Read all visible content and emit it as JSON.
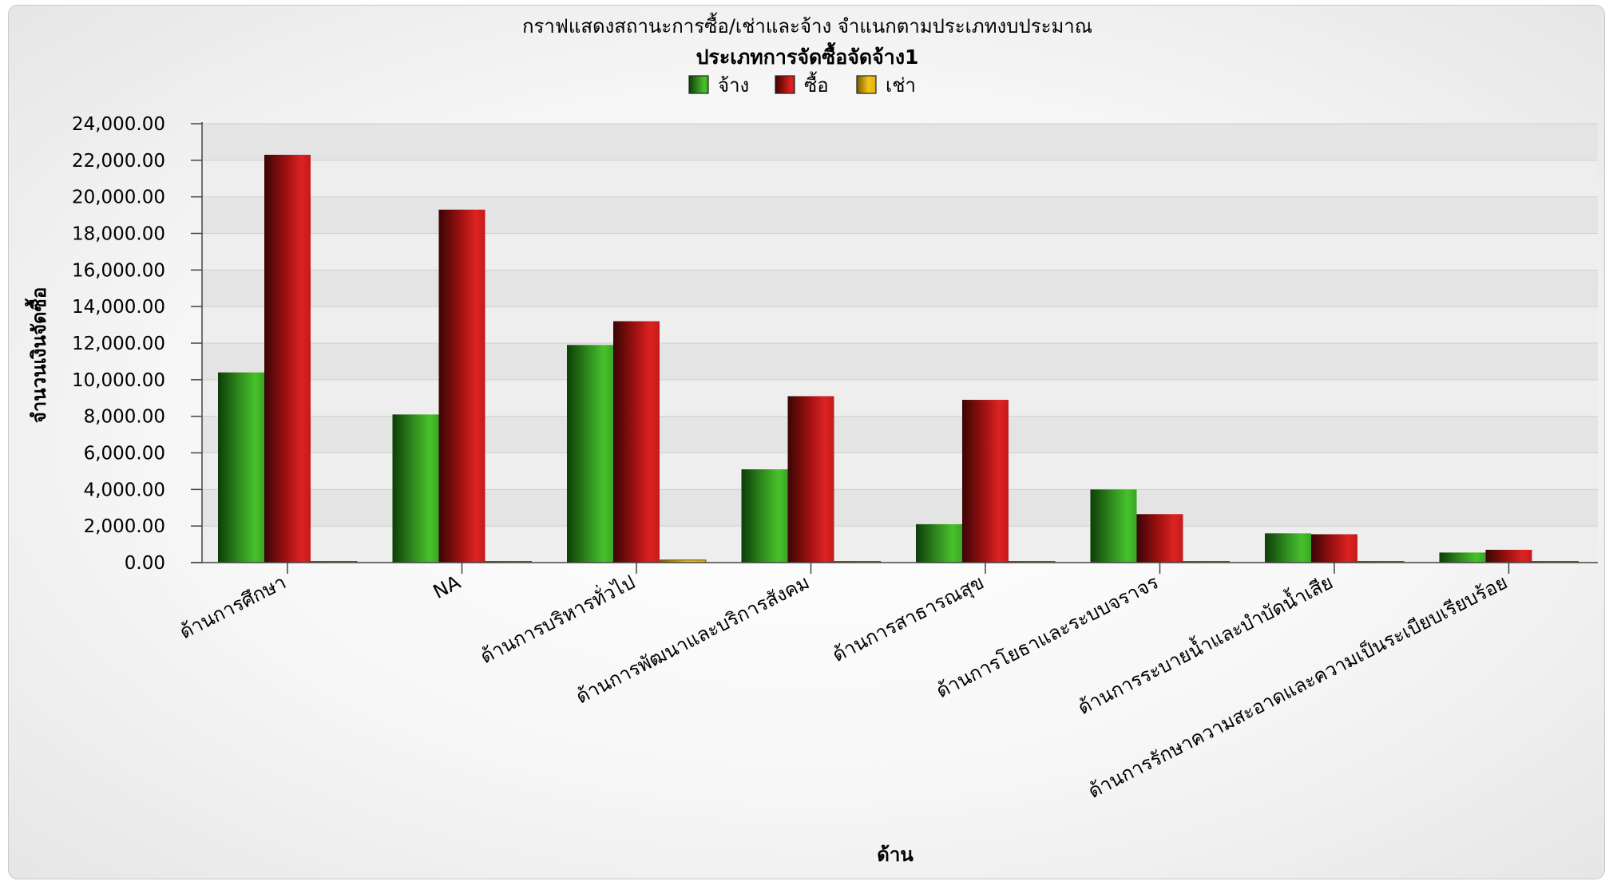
{
  "chart_data": {
    "type": "bar",
    "title": "กราฟแสดงสถานะการซื้อ/เช่าและจ้าง จำแนกตามประเภทงบประมาณ",
    "subtitle": "ประเภทการจัดซื้อจัดจ้าง1",
    "xlabel": "ด้าน",
    "ylabel": "จำนวนเงินจัดซื้อ",
    "ylim": [
      0,
      24000
    ],
    "yticks": [
      "0.00",
      "2,000.00",
      "4,000.00",
      "6,000.00",
      "8,000.00",
      "10,000.00",
      "12,000.00",
      "14,000.00",
      "16,000.00",
      "18,000.00",
      "20,000.00",
      "22,000.00",
      "24,000.00"
    ],
    "grid": true,
    "legend_position": "top-center",
    "categories": [
      "ด้านการศึกษา",
      "NA",
      "ด้านการบริหารทั่วไป",
      "ด้านการพัฒนาและบริการสังคม",
      "ด้านการสาธารณสุข",
      "ด้านการโยธาและระบบจราจร",
      "ด้านการระบายน้ำและบำบัดน้ำเสีย",
      "ด้านการรักษาความสะอาดและความเป็นระเบียบเรียบร้อย"
    ],
    "series": [
      {
        "name": "จ้าง",
        "color": "#2e9e1c",
        "values": [
          10400,
          8100,
          11900,
          5100,
          2100,
          4000,
          1600,
          550
        ]
      },
      {
        "name": "ซื้อ",
        "color": "#c81818",
        "values": [
          22300,
          19300,
          13200,
          9100,
          8900,
          2650,
          1550,
          700
        ]
      },
      {
        "name": "เช่า",
        "color": "#f0c419",
        "values": [
          10,
          30,
          140,
          20,
          25,
          10,
          5,
          0
        ]
      }
    ]
  }
}
